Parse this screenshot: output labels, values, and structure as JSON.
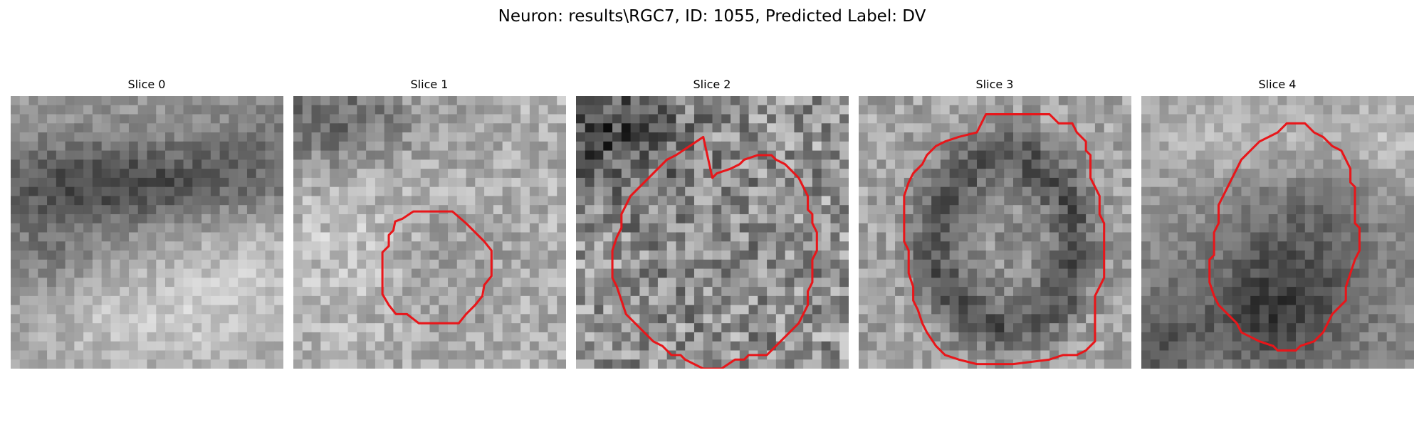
{
  "figure": {
    "title": "Neuron: results\\RGC7, ID: 1055, Predicted Label: DV"
  },
  "colors": {
    "contour": "#e8161a",
    "background": "#ffffff"
  },
  "panels": [
    {
      "title": "Slice 0",
      "has_contour": false
    },
    {
      "title": "Slice 1",
      "has_contour": true
    },
    {
      "title": "Slice 2",
      "has_contour": true
    },
    {
      "title": "Slice 3",
      "has_contour": true
    },
    {
      "title": "Slice 4",
      "has_contour": true
    }
  ]
}
